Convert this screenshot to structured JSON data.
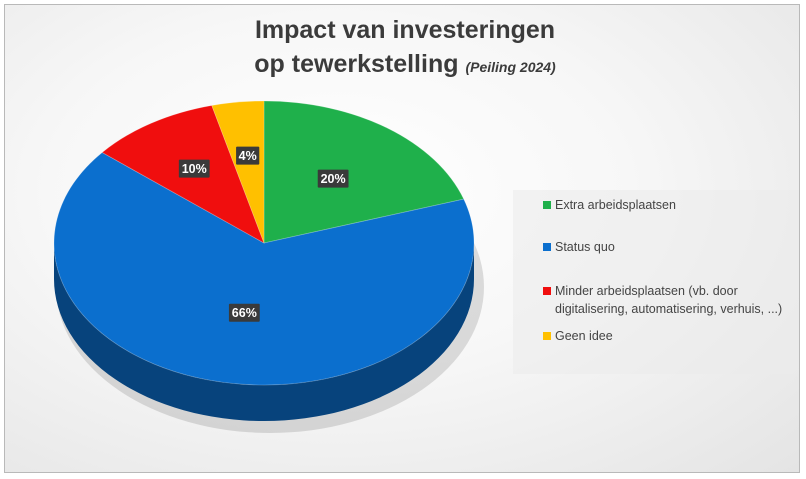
{
  "title_line1": "Impact van investeringen",
  "title_line2": "op tewerkstelling",
  "subtitle": "(Peiling 2024)",
  "chart_data": {
    "type": "pie",
    "title": "Impact van investeringen op tewerkstelling (Peiling 2024)",
    "categories": [
      "Extra arbeidsplaatsen",
      "Status quo",
      "Minder arbeidsplaatsen (vb. door digitalisering, automatisering, verhuis, ...)",
      "Geen idee"
    ],
    "values": [
      20,
      66,
      10,
      4
    ],
    "labels": [
      "20%",
      "66%",
      "10%",
      "4%"
    ],
    "colors": [
      "#1fb04b",
      "#0b6fce",
      "#f00e0e",
      "#ffc000"
    ],
    "legend_position": "right",
    "style": "3d"
  }
}
